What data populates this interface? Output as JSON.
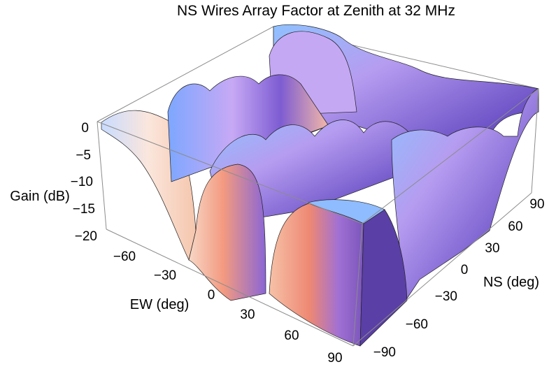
{
  "chart_data": {
    "type": "surface3d",
    "title": "NS Wires Array Factor at Zenith at 32 MHz",
    "xlabel": "EW (deg)",
    "ylabel": "NS (deg)",
    "zlabel": "Gain (dB)",
    "xlim": [
      -90,
      90
    ],
    "ylim": [
      -90,
      90
    ],
    "zlim": [
      -20,
      0
    ],
    "x_ticks": [
      "−60",
      "−30",
      "0",
      "30",
      "60",
      "90"
    ],
    "y_ticks": [
      "−90",
      "−60",
      "−30",
      "0",
      "30",
      "60",
      "90"
    ],
    "z_ticks": [
      "0",
      "−5",
      "−10",
      "−15",
      "−20"
    ],
    "ew_ridges": [
      {
        "x_range": [
          -90,
          -35
        ],
        "peak_gain_db": 0
      },
      {
        "x_range": [
          -35,
          35
        ],
        "peak_gain_db": 0
      },
      {
        "x_range": [
          35,
          90
        ],
        "peak_gain_db": 0
      }
    ],
    "ns_ridge_peaks_db": [
      {
        "ns_deg": -90,
        "gain_db": 0
      },
      {
        "ns_deg": -60,
        "gain_db": -4
      },
      {
        "ns_deg": -37,
        "gain_db": -4
      },
      {
        "ns_deg": -15,
        "gain_db": -4
      },
      {
        "ns_deg": 0,
        "gain_db": 0
      },
      {
        "ns_deg": 15,
        "gain_db": -4
      },
      {
        "ns_deg": 37,
        "gain_db": -4
      },
      {
        "ns_deg": 60,
        "gain_db": -4
      },
      {
        "ns_deg": 90,
        "gain_db": 0
      }
    ],
    "colors": {
      "low": "#5a3fa6",
      "mid": "#9c7fe0",
      "high": "#f7c9b0",
      "peak": "#7fb8ff",
      "warm": "#f07f6a"
    },
    "box": true,
    "grid": false
  }
}
